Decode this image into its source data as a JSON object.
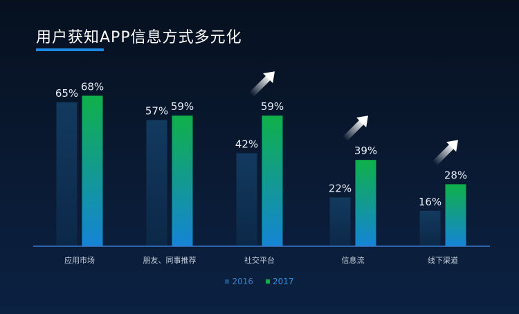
{
  "title": "用户获知APP信息方式多元化",
  "colors": {
    "series_2016": "#123a5e",
    "series_2017_top": "#10b04a",
    "series_2017_bottom": "#1584d6",
    "legend_2016_text": "#3d7fc4",
    "legend_2017_text": "#2e95e0",
    "arrow": "#ffffff",
    "axis": "#3a7bd0"
  },
  "chart_data": {
    "type": "bar",
    "categories": [
      "应用市场",
      "朋友、同事推荐",
      "社交平台",
      "信息流",
      "线下渠道"
    ],
    "series": [
      {
        "name": "2016",
        "values": [
          65,
          57,
          42,
          22,
          16
        ],
        "labels": [
          "65%",
          "57%",
          "42%",
          "22%",
          "16%"
        ]
      },
      {
        "name": "2017",
        "values": [
          68,
          59,
          59,
          39,
          28
        ],
        "labels": [
          "68%",
          "59%",
          "59%",
          "39%",
          "28%"
        ]
      }
    ],
    "ylim": [
      0,
      100
    ],
    "growth_arrows": [
      "社交平台",
      "信息流",
      "线下渠道"
    ],
    "legend_position": "bottom-center",
    "grid": false
  }
}
